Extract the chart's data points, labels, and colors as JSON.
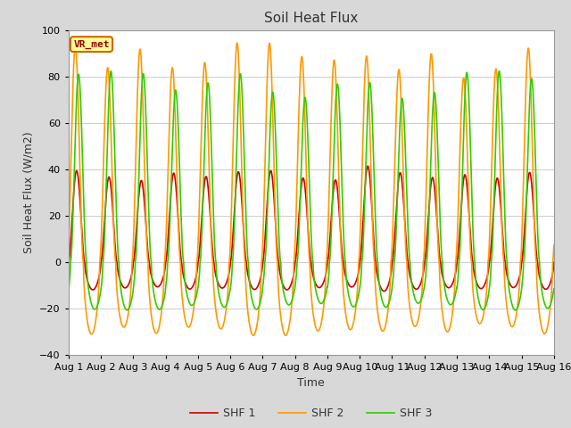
{
  "title": "Soil Heat Flux",
  "xlabel": "Time",
  "ylabel": "Soil Heat Flux (W/m2)",
  "ylim": [
    -40,
    100
  ],
  "n_days": 15,
  "points_per_day": 144,
  "legend_labels": [
    "SHF 1",
    "SHF 2",
    "SHF 3"
  ],
  "line_colors": [
    "#cc0000",
    "#ff9900",
    "#33cc00"
  ],
  "line_width": 1.2,
  "figure_bg_color": "#d8d8d8",
  "plot_bg_color": "#ffffff",
  "annotation_text": "VR_met",
  "annotation_bg": "#ffff99",
  "annotation_border": "#cc6600",
  "annotation_text_color": "#990000",
  "grid_color": "#cccccc",
  "tick_labels": [
    "Aug 1",
    "Aug 2",
    "Aug 3",
    "Aug 4",
    "Aug 5",
    "Aug 6",
    "Aug 7",
    "Aug 8",
    "Aug 9",
    "Aug 10",
    "Aug 11",
    "Aug 12",
    "Aug 13",
    "Aug 14",
    "Aug 15",
    "Aug 16"
  ],
  "title_fontsize": 11,
  "label_fontsize": 9,
  "tick_fontsize": 8
}
